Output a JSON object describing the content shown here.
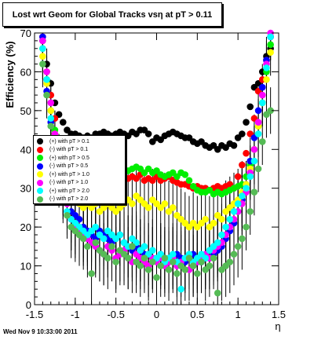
{
  "page": {
    "title": "Lost wrt Geom for Global Tracks vsη at pT > 0.11",
    "footer": "Wed Nov  9 10:33:00 2011"
  },
  "chart_data": {
    "type": "scatter",
    "title": "Lost wrt Geom for Global Tracks vsη at pT > 0.11",
    "xlabel": "η",
    "ylabel": "Efficiency (%)",
    "xlim": [
      -1.5,
      1.5
    ],
    "ylim": [
      0,
      70
    ],
    "xticks": [
      -1.5,
      -1,
      -0.5,
      0,
      0.5,
      1,
      1.5
    ],
    "xtick_labels": [
      "-1.5",
      "-1",
      "-0.5",
      "0",
      "0.5",
      "1",
      "1.5"
    ],
    "yticks": [
      0,
      10,
      20,
      30,
      40,
      50,
      60,
      70
    ],
    "ytick_labels": [
      "0",
      "10",
      "20",
      "30",
      "40",
      "50",
      "60",
      "70"
    ],
    "legend_position": "left-middle",
    "series": [
      {
        "name": "(+) with pT > 0.1",
        "color": "#000000",
        "errors": false,
        "x": [
          -1.4,
          -1.35,
          -1.3,
          -1.25,
          -1.2,
          -1.15,
          -1.1,
          -1.05,
          -1.0,
          -0.95,
          -0.9,
          -0.85,
          -0.8,
          -0.75,
          -0.7,
          -0.65,
          -0.6,
          -0.55,
          -0.5,
          -0.45,
          -0.4,
          -0.35,
          -0.3,
          -0.25,
          -0.2,
          -0.15,
          -0.1,
          -0.05,
          0.0,
          0.05,
          0.1,
          0.15,
          0.2,
          0.25,
          0.3,
          0.35,
          0.4,
          0.45,
          0.5,
          0.55,
          0.6,
          0.65,
          0.7,
          0.75,
          0.8,
          0.85,
          0.9,
          0.95,
          1.0,
          1.05,
          1.1,
          1.15,
          1.2,
          1.25,
          1.3,
          1.35,
          1.4
        ],
        "y": [
          68,
          62,
          57,
          52,
          49,
          47,
          45,
          44,
          44,
          43.5,
          43,
          43.5,
          43,
          44,
          44,
          44.5,
          44,
          43.5,
          44,
          44.5,
          44,
          43.5,
          44.5,
          44,
          45,
          45,
          44,
          42,
          43,
          42.5,
          43.5,
          44,
          44.5,
          44,
          43.5,
          43,
          43,
          42,
          41.5,
          42,
          41,
          40.5,
          41,
          40,
          41,
          40.5,
          41.5,
          41,
          43,
          44,
          47,
          51,
          56,
          57,
          60,
          64,
          66
        ]
      },
      {
        "name": "(-) with pT > 0.1",
        "color": "#ff0000",
        "errors": false,
        "x": [
          -1.4,
          -1.35,
          -1.3,
          -1.25,
          -1.2,
          -1.15,
          -1.1,
          -1.05,
          -1.0,
          -0.95,
          -0.9,
          -0.85,
          -0.8,
          -0.75,
          -0.7,
          -0.65,
          -0.6,
          -0.55,
          -0.5,
          -0.45,
          -0.4,
          -0.35,
          -0.3,
          -0.25,
          -0.2,
          -0.15,
          -0.1,
          -0.05,
          0.0,
          0.05,
          0.1,
          0.15,
          0.2,
          0.25,
          0.3,
          0.35,
          0.4,
          0.45,
          0.5,
          0.55,
          0.6,
          0.65,
          0.7,
          0.75,
          0.8,
          0.85,
          0.9,
          0.95,
          1.0,
          1.05,
          1.1,
          1.15,
          1.2,
          1.25,
          1.3,
          1.35,
          1.4
        ],
        "y": [
          69,
          60,
          54,
          48,
          42,
          40,
          38,
          36.5,
          36,
          35.5,
          35,
          34.5,
          34,
          33,
          33.5,
          33,
          32.5,
          33,
          32.5,
          32,
          33,
          32.5,
          33,
          32.5,
          33.5,
          32,
          32.5,
          32,
          33,
          32,
          32.5,
          33,
          32,
          31.5,
          31,
          31,
          30.5,
          30,
          30.5,
          30,
          30,
          29.5,
          30,
          30.5,
          30,
          30.5,
          31,
          30,
          33,
          36,
          39,
          44,
          48,
          55,
          58,
          63,
          69
        ]
      },
      {
        "name": "(+) with pT > 0.5",
        "color": "#00ee00",
        "errors": false,
        "x": [
          -1.4,
          -1.35,
          -1.3,
          -1.25,
          -1.2,
          -1.15,
          -1.1,
          -1.05,
          -1.0,
          -0.95,
          -0.9,
          -0.85,
          -0.8,
          -0.75,
          -0.7,
          -0.65,
          -0.6,
          -0.55,
          -0.5,
          -0.45,
          -0.4,
          -0.35,
          -0.3,
          -0.25,
          -0.2,
          -0.15,
          -0.1,
          -0.05,
          0.0,
          0.05,
          0.1,
          0.15,
          0.2,
          0.25,
          0.3,
          0.35,
          0.4,
          0.45,
          0.5,
          0.55,
          0.6,
          0.65,
          0.7,
          0.75,
          0.8,
          0.85,
          0.9,
          0.95,
          1.0,
          1.05,
          1.1,
          1.15,
          1.2,
          1.25,
          1.3,
          1.35,
          1.4
        ],
        "y": [
          66,
          58,
          50,
          45,
          40,
          38,
          36,
          35,
          34.5,
          34,
          33.5,
          34,
          34,
          34.5,
          34,
          34.5,
          35,
          34,
          35,
          35.5,
          35,
          34.5,
          35,
          35.5,
          35,
          34,
          35,
          34,
          34.5,
          33.5,
          33,
          33.5,
          34,
          33,
          34,
          33.5,
          32,
          30.5,
          29.5,
          29,
          29,
          29.5,
          28.5,
          29,
          28.5,
          29,
          29.5,
          30,
          30.5,
          31,
          33,
          36,
          40,
          46,
          52,
          60,
          67
        ]
      },
      {
        "name": "(-) with pT > 0.5",
        "color": "#0000ff",
        "errors": true,
        "x": [
          -1.4,
          -1.35,
          -1.3,
          -1.25,
          -1.2,
          -1.15,
          -1.1,
          -1.05,
          -1.0,
          -0.95,
          -0.9,
          -0.85,
          -0.8,
          -0.75,
          -0.7,
          -0.65,
          -0.6,
          -0.55,
          -0.5,
          -0.45,
          -0.4,
          -0.35,
          -0.3,
          -0.25,
          -0.2,
          -0.15,
          -0.1,
          -0.05,
          0.0,
          0.05,
          0.1,
          0.15,
          0.2,
          0.25,
          0.3,
          0.35,
          0.4,
          0.45,
          0.5,
          0.55,
          0.6,
          0.65,
          0.7,
          0.75,
          0.8,
          0.85,
          0.9,
          0.95,
          1.0,
          1.05,
          1.1,
          1.15,
          1.2,
          1.25,
          1.3,
          1.35,
          1.4
        ],
        "y": [
          69,
          55,
          47,
          40,
          34,
          29,
          26,
          24,
          23,
          22,
          20,
          19,
          18,
          17,
          19,
          18,
          17,
          16,
          17,
          18,
          16,
          15,
          14,
          15,
          14,
          13,
          13,
          12,
          12,
          13,
          12,
          11,
          12,
          13,
          12,
          11,
          12,
          13,
          11,
          11,
          12,
          12,
          13,
          14,
          15,
          17,
          19,
          21,
          24,
          27,
          31,
          37,
          43,
          50,
          56,
          63,
          69
        ]
      },
      {
        "name": "(+) with pT > 1.0",
        "color": "#ffff00",
        "errors": true,
        "x": [
          -1.4,
          -1.35,
          -1.3,
          -1.25,
          -1.2,
          -1.15,
          -1.1,
          -1.05,
          -1.0,
          -0.95,
          -0.9,
          -0.85,
          -0.8,
          -0.75,
          -0.7,
          -0.65,
          -0.6,
          -0.55,
          -0.5,
          -0.45,
          -0.4,
          -0.35,
          -0.3,
          -0.25,
          -0.2,
          -0.15,
          -0.1,
          -0.05,
          0.0,
          0.05,
          0.1,
          0.15,
          0.2,
          0.25,
          0.3,
          0.35,
          0.4,
          0.45,
          0.5,
          0.55,
          0.6,
          0.65,
          0.7,
          0.75,
          0.8,
          0.85,
          0.9,
          0.95,
          1.0,
          1.05,
          1.1,
          1.15,
          1.2,
          1.25,
          1.3,
          1.35,
          1.4
        ],
        "y": [
          64,
          57,
          50,
          44,
          38,
          33,
          30,
          28,
          27,
          26,
          25,
          26,
          25,
          26,
          24,
          25,
          26,
          25,
          24,
          25,
          26,
          27,
          26,
          28,
          27,
          26,
          25,
          27,
          26,
          25,
          26,
          24,
          25,
          23,
          22,
          21,
          20,
          21,
          20,
          21,
          22,
          20,
          21,
          23,
          22,
          24,
          25,
          26,
          27,
          29,
          31,
          35,
          40,
          46,
          52,
          58,
          65
        ]
      },
      {
        "name": "(-) with pT > 1.0",
        "color": "#ff00ff",
        "errors": true,
        "x": [
          -1.4,
          -1.35,
          -1.3,
          -1.25,
          -1.2,
          -1.15,
          -1.1,
          -1.05,
          -1.0,
          -0.95,
          -0.9,
          -0.85,
          -0.8,
          -0.75,
          -0.7,
          -0.65,
          -0.6,
          -0.55,
          -0.5,
          -0.45,
          -0.4,
          -0.35,
          -0.3,
          -0.25,
          -0.2,
          -0.15,
          -0.1,
          -0.05,
          0.0,
          0.05,
          0.1,
          0.15,
          0.2,
          0.25,
          0.3,
          0.35,
          0.4,
          0.45,
          0.5,
          0.55,
          0.6,
          0.65,
          0.7,
          0.75,
          0.8,
          0.85,
          0.9,
          0.95,
          1.0,
          1.05,
          1.1,
          1.15,
          1.2,
          1.25,
          1.3,
          1.35,
          1.4
        ],
        "y": [
          68,
          60,
          52,
          44,
          37,
          31,
          26,
          22,
          20,
          19,
          18,
          17,
          16,
          15,
          14,
          13,
          15,
          14,
          12,
          13,
          14,
          12,
          11,
          13,
          12,
          11,
          10,
          12,
          11,
          12,
          10,
          11,
          12,
          10,
          11,
          12,
          9,
          10,
          11,
          12,
          13,
          12,
          14,
          15,
          16,
          18,
          20,
          22,
          24,
          26,
          29,
          34,
          40,
          47,
          54,
          62,
          70
        ]
      },
      {
        "name": "(+) with pT > 2.0",
        "color": "#00ffff",
        "errors": true,
        "x": [
          -1.4,
          -1.35,
          -1.3,
          -1.25,
          -1.2,
          -1.15,
          -1.1,
          -1.05,
          -1.0,
          -0.95,
          -0.9,
          -0.85,
          -0.8,
          -0.75,
          -0.7,
          -0.65,
          -0.6,
          -0.55,
          -0.5,
          -0.45,
          -0.4,
          -0.35,
          -0.3,
          -0.25,
          -0.2,
          -0.15,
          -0.1,
          -0.05,
          0.0,
          0.05,
          0.1,
          0.15,
          0.2,
          0.25,
          0.3,
          0.35,
          0.4,
          0.45,
          0.5,
          0.55,
          0.6,
          0.65,
          0.7,
          0.75,
          0.8,
          0.85,
          0.9,
          0.95,
          1.0,
          1.05,
          1.1,
          1.15,
          1.2,
          1.25,
          1.3,
          1.35,
          1.4
        ],
        "y": [
          66,
          58,
          48,
          40,
          33,
          28,
          24,
          22,
          21,
          20,
          19,
          18,
          19,
          20,
          18,
          17,
          19,
          18,
          17,
          18,
          16,
          15,
          17,
          16,
          14,
          15,
          13,
          14,
          12,
          13,
          11,
          12,
          13,
          11,
          4,
          12,
          13,
          11,
          12,
          13,
          12,
          14,
          15,
          16,
          18,
          20,
          22,
          24,
          26,
          28,
          30,
          33,
          37,
          44,
          52,
          61,
          69
        ]
      },
      {
        "name": "(-) with pT > 2.0",
        "color": "#55bb55",
        "errors": true,
        "x": [
          -1.4,
          -1.35,
          -1.3,
          -1.25,
          -1.2,
          -1.15,
          -1.1,
          -1.05,
          -1.0,
          -0.95,
          -0.9,
          -0.85,
          -0.8,
          -0.75,
          -0.7,
          -0.65,
          -0.6,
          -0.55,
          -0.5,
          -0.45,
          -0.4,
          -0.35,
          -0.3,
          -0.25,
          -0.2,
          -0.15,
          -0.1,
          -0.05,
          0.0,
          0.05,
          0.1,
          0.15,
          0.2,
          0.25,
          0.3,
          0.35,
          0.4,
          0.45,
          0.5,
          0.55,
          0.6,
          0.65,
          0.7,
          0.75,
          0.8,
          0.85,
          0.9,
          0.95,
          1.0,
          1.05,
          1.1,
          1.15,
          1.2,
          1.25,
          1.3,
          1.35,
          1.4
        ],
        "y": [
          62,
          54,
          46,
          38,
          31,
          27,
          23,
          20,
          19,
          18,
          17,
          15,
          8,
          16,
          14,
          13,
          12,
          15,
          11,
          14,
          13,
          12,
          15,
          11,
          10,
          12,
          9,
          11,
          7,
          10,
          12,
          9,
          11,
          8,
          10,
          9,
          12,
          10,
          8,
          11,
          9,
          10,
          12,
          3,
          9,
          10,
          11,
          13,
          15,
          17,
          20,
          24,
          29,
          35,
          42,
          49,
          50
        ]
      }
    ]
  }
}
